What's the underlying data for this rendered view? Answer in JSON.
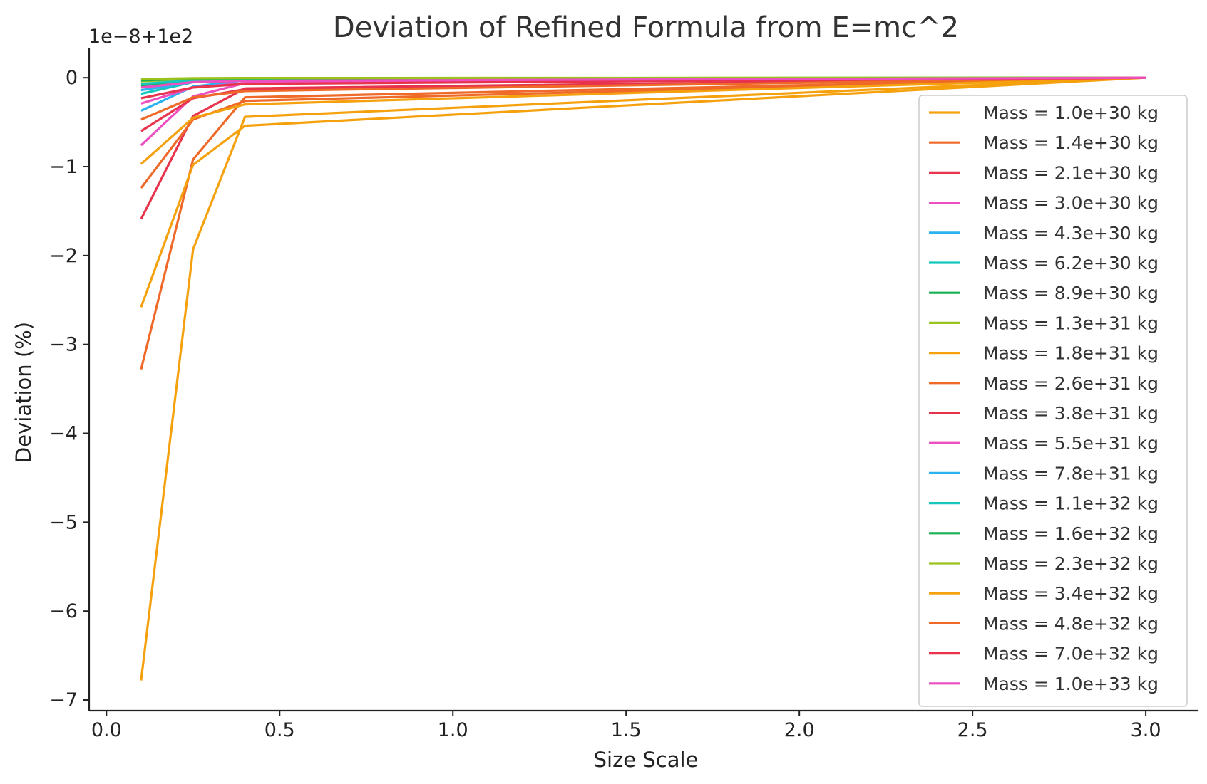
{
  "chart_data": {
    "type": "line",
    "title": "Deviation of Refined Formula from E=mc^2",
    "xlabel": "Size Scale",
    "ylabel": "Deviation (%)",
    "offset_text": "1e−8+1e2",
    "xlim": [
      -0.05,
      3.15
    ],
    "ylim": [
      -7.12,
      0.33
    ],
    "x_ticks": [
      0.0,
      0.5,
      1.0,
      1.5,
      2.0,
      2.5,
      3.0
    ],
    "x_tick_labels": [
      "0.0",
      "0.5",
      "1.0",
      "1.5",
      "2.0",
      "2.5",
      "3.0"
    ],
    "y_ticks": [
      0,
      -1,
      -2,
      -3,
      -4,
      -5,
      -6,
      -7
    ],
    "y_tick_labels": [
      "0",
      "−1",
      "−2",
      "−3",
      "−4",
      "−5",
      "−6",
      "−7"
    ],
    "grid": false,
    "legend_position": "right",
    "x": [
      0.1,
      0.25,
      0.4,
      3.0
    ],
    "series": [
      {
        "name": "Mass = 1.0e+30 kg",
        "color": "#f5a10e",
        "values": [
          -6.78,
          -1.93,
          -0.44,
          0
        ]
      },
      {
        "name": "Mass = 1.4e+30 kg",
        "color": "#ef6a28",
        "values": [
          -3.28,
          -0.92,
          -0.22,
          0
        ]
      },
      {
        "name": "Mass = 2.1e+30 kg",
        "color": "#e8334d",
        "values": [
          -1.59,
          -0.43,
          -0.12,
          0
        ]
      },
      {
        "name": "Mass = 3.0e+30 kg",
        "color": "#ec4fbf",
        "values": [
          -0.76,
          -0.21,
          -0.06,
          0
        ]
      },
      {
        "name": "Mass = 4.3e+30 kg",
        "color": "#2bb1ef",
        "values": [
          -0.37,
          -0.1,
          -0.03,
          0
        ]
      },
      {
        "name": "Mass = 6.2e+30 kg",
        "color": "#14c6bc",
        "values": [
          -0.18,
          -0.05,
          -0.02,
          0
        ]
      },
      {
        "name": "Mass = 8.9e+30 kg",
        "color": "#17b050",
        "values": [
          -0.09,
          -0.03,
          -0.01,
          0
        ]
      },
      {
        "name": "Mass = 1.3e+31 kg",
        "color": "#9cc21d",
        "values": [
          -0.04,
          -0.01,
          -0.005,
          0
        ]
      },
      {
        "name": "Mass = 1.8e+31 kg",
        "color": "#f5a10e",
        "values": [
          -2.58,
          -0.98,
          -0.54,
          0
        ]
      },
      {
        "name": "Mass = 2.6e+31 kg",
        "color": "#ef6a28",
        "values": [
          -1.24,
          -0.47,
          -0.26,
          0
        ]
      },
      {
        "name": "Mass = 3.8e+31 kg",
        "color": "#e8334d",
        "values": [
          -0.6,
          -0.23,
          -0.13,
          0
        ]
      },
      {
        "name": "Mass = 5.5e+31 kg",
        "color": "#ec4fbf",
        "values": [
          -0.29,
          -0.11,
          -0.06,
          0
        ]
      },
      {
        "name": "Mass = 7.8e+31 kg",
        "color": "#2bb1ef",
        "values": [
          -0.14,
          -0.05,
          -0.03,
          0
        ]
      },
      {
        "name": "Mass = 1.1e+32 kg",
        "color": "#14c6bc",
        "values": [
          -0.07,
          -0.03,
          -0.015,
          0
        ]
      },
      {
        "name": "Mass = 1.6e+32 kg",
        "color": "#17b050",
        "values": [
          -0.03,
          -0.01,
          -0.007,
          0
        ]
      },
      {
        "name": "Mass = 2.3e+32 kg",
        "color": "#9cc21d",
        "values": [
          -0.015,
          -0.006,
          -0.003,
          0
        ]
      },
      {
        "name": "Mass = 3.4e+32 kg",
        "color": "#f5a10e",
        "values": [
          -0.97,
          -0.45,
          -0.3,
          0
        ]
      },
      {
        "name": "Mass = 4.8e+32 kg",
        "color": "#ef6a28",
        "values": [
          -0.47,
          -0.22,
          -0.15,
          0
        ]
      },
      {
        "name": "Mass = 7.0e+32 kg",
        "color": "#e8334d",
        "values": [
          -0.23,
          -0.11,
          -0.07,
          0
        ]
      },
      {
        "name": "Mass = 1.0e+33 kg",
        "color": "#ec4fbf",
        "values": [
          -0.11,
          -0.05,
          -0.035,
          0
        ]
      }
    ]
  }
}
